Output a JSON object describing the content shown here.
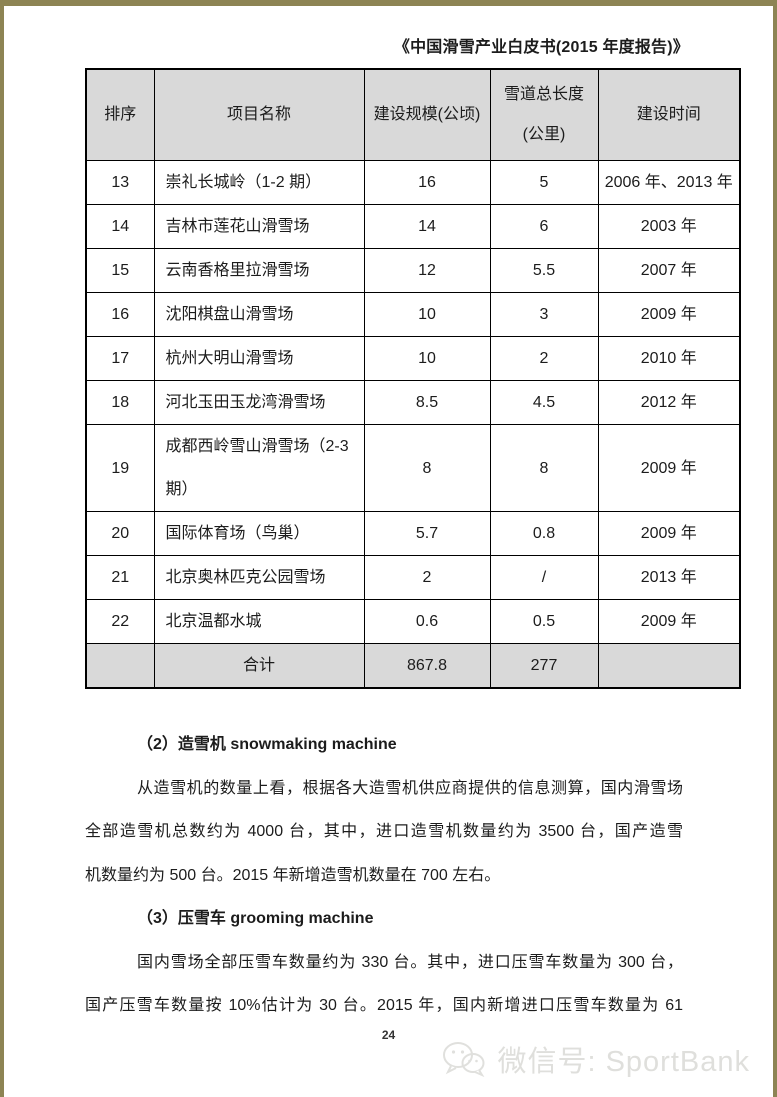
{
  "doc": {
    "title": "《中国滑雪产业白皮书(2015 年度报告)》",
    "page_number": "24"
  },
  "table": {
    "columns": [
      {
        "label": "排序"
      },
      {
        "label": "项目名称"
      },
      {
        "label": "建设规模(公顷)"
      },
      {
        "label": "雪道总长度",
        "label2": "(公里)"
      },
      {
        "label": "建设时间"
      }
    ],
    "rows": [
      {
        "rank": "13",
        "name": "崇礼长城岭（1-2 期）",
        "scale": "16",
        "length": "5",
        "time": "2006 年、2013 年"
      },
      {
        "rank": "14",
        "name": "吉林市莲花山滑雪场",
        "scale": "14",
        "length": "6",
        "time": "2003 年"
      },
      {
        "rank": "15",
        "name": "云南香格里拉滑雪场",
        "scale": "12",
        "length": "5.5",
        "time": "2007 年"
      },
      {
        "rank": "16",
        "name": "沈阳棋盘山滑雪场",
        "scale": "10",
        "length": "3",
        "time": "2009 年"
      },
      {
        "rank": "17",
        "name": "杭州大明山滑雪场",
        "scale": "10",
        "length": "2",
        "time": "2010 年"
      },
      {
        "rank": "18",
        "name": "河北玉田玉龙湾滑雪场",
        "scale": "8.5",
        "length": "4.5",
        "time": "2012 年"
      },
      {
        "rank": "19",
        "name": "成都西岭雪山滑雪场（2-3 期）",
        "scale": "8",
        "length": "8",
        "time": "2009 年"
      },
      {
        "rank": "20",
        "name": "国际体育场（鸟巢）",
        "scale": "5.7",
        "length": "0.8",
        "time": "2009 年"
      },
      {
        "rank": "21",
        "name": "北京奥林匹克公园雪场",
        "scale": "2",
        "length": "/",
        "time": "2013 年"
      },
      {
        "rank": "22",
        "name": "北京温都水城",
        "scale": "0.6",
        "length": "0.5",
        "time": "2009 年"
      }
    ],
    "footer": {
      "rank": "",
      "name": "合计",
      "scale": "867.8",
      "length": "277",
      "time": ""
    }
  },
  "body": {
    "lines": [
      {
        "name": "section-heading-snowmaking",
        "text": "（2）造雪机 snowmaking machine",
        "bold": true,
        "indent": true
      },
      {
        "name": "text-line",
        "text": "从造雪机的数量上看，根据各大造雪机供应商提供的信息测算，国内滑雪场",
        "indent": true,
        "justify": true
      },
      {
        "name": "text-line",
        "text": "全部造雪机总数约为 4000 台，其中，进口造雪机数量约为 3500 台，国产造雪",
        "justify": true
      },
      {
        "name": "text-line",
        "text": "机数量约为 500 台。2015 年新增造雪机数量在 700 左右。"
      },
      {
        "name": "section-heading-grooming",
        "text": "（3）压雪车 grooming machine",
        "bold": true,
        "indent": true
      },
      {
        "name": "text-line",
        "text": "国内雪场全部压雪车数量约为 330 台。其中，进口压雪车数量为 300 台，",
        "indent": true,
        "justify": true
      },
      {
        "name": "text-line",
        "text": "国产压雪车数量按 10%估计为 30 台。2015 年，国内新增进口压雪车数量为 61",
        "justify": true
      }
    ]
  },
  "watermark": {
    "icon": "wechat-logo",
    "text": "微信号: SportBank"
  },
  "colors": {
    "frame": "#8d8454",
    "table_header_bg": "#d9d9d9",
    "watermark": "#dfdfdc"
  }
}
